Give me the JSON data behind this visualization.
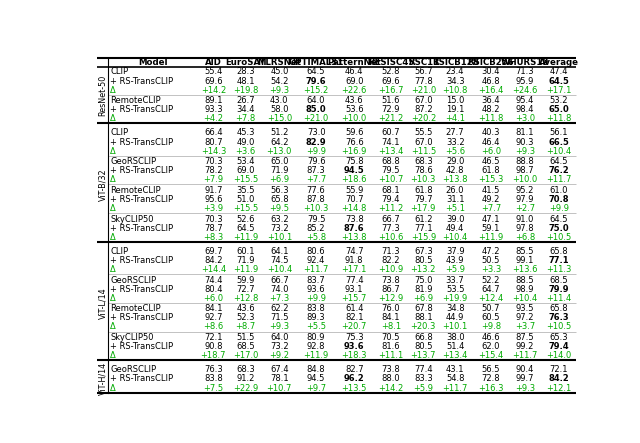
{
  "columns": [
    "Model",
    "AID",
    "EuroSAT",
    "MLRSNet",
    "OPTIMAL31",
    "PatternNet",
    "RESISC45",
    "RSC11",
    "RSICB128",
    "RSICB256",
    "WHURS19",
    "Average"
  ],
  "sections": [
    {
      "backbone": "ResNet-50",
      "groups": [
        {
          "rows": [
            [
              "CLIP",
              "55.4",
              "28.3",
              "45.0",
              "64.5",
              "46.4",
              "52.8",
              "56.7",
              "23.4",
              "30.4",
              "71.3",
              "47.4"
            ],
            [
              "+ RS-TransCLIP",
              "69.6",
              "48.1",
              "54.2",
              "79.6",
              "69.0",
              "69.6",
              "77.8",
              "34.3",
              "46.8",
              "95.9",
              "64.5"
            ],
            [
              "Δ",
              "+14.2",
              "+19.8",
              "+9.3",
              "+15.2",
              "+22.6",
              "+16.7",
              "+21.0",
              "+10.8",
              "+16.4",
              "+24.6",
              "+17.1"
            ]
          ],
          "bold_row1": [],
          "bold_row2": [
            4,
            11
          ]
        },
        {
          "rows": [
            [
              "RemoteCLIP",
              "89.1",
              "26.7",
              "43.0",
              "64.0",
              "43.6",
              "51.6",
              "67.0",
              "15.0",
              "36.4",
              "95.4",
              "53.2"
            ],
            [
              "+ RS-TransCLIP",
              "93.3",
              "34.4",
              "58.0",
              "85.0",
              "53.6",
              "72.9",
              "87.2",
              "19.1",
              "48.2",
              "98.4",
              "65.0"
            ],
            [
              "Δ",
              "+4.2",
              "+7.8",
              "+15.0",
              "+21.0",
              "+10.0",
              "+21.2",
              "+20.2",
              "+4.1",
              "+11.8",
              "+3.0",
              "+11.8"
            ]
          ],
          "bold_row1": [],
          "bold_row2": [
            4,
            11
          ]
        }
      ]
    },
    {
      "backbone": "ViT-B/32",
      "groups": [
        {
          "rows": [
            [
              "CLIP",
              "66.4",
              "45.3",
              "51.2",
              "73.0",
              "59.6",
              "60.7",
              "55.5",
              "27.7",
              "40.3",
              "81.1",
              "56.1"
            ],
            [
              "+ RS-TransCLIP",
              "80.7",
              "49.0",
              "64.2",
              "82.9",
              "76.6",
              "74.1",
              "67.0",
              "33.2",
              "46.4",
              "90.3",
              "66.5"
            ],
            [
              "Δ",
              "+14.3",
              "+3.6",
              "+13.0",
              "+9.9",
              "+16.9",
              "+13.4",
              "+11.5",
              "+5.6",
              "+6.0",
              "+9.3",
              "+10.4"
            ]
          ],
          "bold_row1": [],
          "bold_row2": [
            4,
            11
          ]
        },
        {
          "rows": [
            [
              "GeoRSCLIP",
              "70.3",
              "53.4",
              "65.0",
              "79.6",
              "75.8",
              "68.8",
              "68.3",
              "29.0",
              "46.5",
              "88.8",
              "64.5"
            ],
            [
              "+ RS-TransCLIP",
              "78.2",
              "69.0",
              "71.9",
              "87.3",
              "94.5",
              "79.5",
              "78.6",
              "42.8",
              "61.8",
              "98.7",
              "76.2"
            ],
            [
              "Δ",
              "+7.9",
              "+15.5",
              "+6.9",
              "+7.7",
              "+18.6",
              "+10.7",
              "+10.3",
              "+13.8",
              "+15.3",
              "+10.0",
              "+11.7"
            ]
          ],
          "bold_row1": [],
          "bold_row2": [
            5,
            11
          ]
        },
        {
          "rows": [
            [
              "RemoteCLIP",
              "91.7",
              "35.5",
              "56.3",
              "77.6",
              "55.9",
              "68.1",
              "61.8",
              "26.0",
              "41.5",
              "95.2",
              "61.0"
            ],
            [
              "+ RS-TransCLIP",
              "95.6",
              "51.0",
              "65.8",
              "87.8",
              "70.7",
              "79.4",
              "79.7",
              "31.1",
              "49.2",
              "97.9",
              "70.8"
            ],
            [
              "Δ",
              "+3.9",
              "+15.5",
              "+9.5",
              "+10.3",
              "+14.8",
              "+11.2",
              "+17.9",
              "+5.1",
              "+7.7",
              "+2.7",
              "+9.9"
            ]
          ],
          "bold_row1": [],
          "bold_row2": [
            11
          ]
        },
        {
          "rows": [
            [
              "SkyCLIP50",
              "70.3",
              "52.6",
              "63.2",
              "79.5",
              "73.8",
              "66.7",
              "61.2",
              "39.0",
              "47.1",
              "91.0",
              "64.5"
            ],
            [
              "+ RS-TransCLIP",
              "78.7",
              "64.5",
              "73.2",
              "85.2",
              "87.6",
              "77.3",
              "77.1",
              "49.4",
              "59.1",
              "97.8",
              "75.0"
            ],
            [
              "Δ",
              "+8.3",
              "+11.9",
              "+10.1",
              "+5.8",
              "+13.8",
              "+10.6",
              "+15.9",
              "+10.4",
              "+11.9",
              "+6.8",
              "+10.5"
            ]
          ],
          "bold_row1": [],
          "bold_row2": [
            5,
            11
          ]
        }
      ]
    },
    {
      "backbone": "ViT-L/14",
      "groups": [
        {
          "rows": [
            [
              "CLIP",
              "69.7",
              "60.1",
              "64.1",
              "80.6",
              "74.7",
              "71.3",
              "67.3",
              "37.9",
              "47.2",
              "85.5",
              "65.8"
            ],
            [
              "+ RS-TransCLIP",
              "84.2",
              "71.9",
              "74.5",
              "92.4",
              "91.8",
              "82.2",
              "80.5",
              "43.9",
              "50.5",
              "99.1",
              "77.1"
            ],
            [
              "Δ",
              "+14.4",
              "+11.9",
              "+10.4",
              "+11.7",
              "+17.1",
              "+10.9",
              "+13.2",
              "+5.9",
              "+3.3",
              "+13.6",
              "+11.3"
            ]
          ],
          "bold_row1": [],
          "bold_row2": [
            11
          ]
        },
        {
          "rows": [
            [
              "GeoRSCLIP",
              "74.4",
              "59.9",
              "66.7",
              "83.7",
              "77.4",
              "73.8",
              "75.0",
              "33.7",
              "52.2",
              "88.5",
              "68.5"
            ],
            [
              "+ RS-TransCLIP",
              "80.4",
              "72.7",
              "74.0",
              "93.6",
              "93.1",
              "86.7",
              "81.9",
              "53.5",
              "64.7",
              "98.9",
              "79.9"
            ],
            [
              "Δ",
              "+6.0",
              "+12.8",
              "+7.3",
              "+9.9",
              "+15.7",
              "+12.9",
              "+6.9",
              "+19.9",
              "+12.4",
              "+10.4",
              "+11.4"
            ]
          ],
          "bold_row1": [],
          "bold_row2": [
            11
          ]
        },
        {
          "rows": [
            [
              "RemoteCLIP",
              "84.1",
              "43.6",
              "62.2",
              "83.8",
              "61.4",
              "76.0",
              "67.8",
              "34.8",
              "50.7",
              "93.5",
              "65.8"
            ],
            [
              "+ RS-TransCLIP",
              "92.7",
              "52.3",
              "71.5",
              "89.3",
              "82.1",
              "84.1",
              "88.1",
              "44.9",
              "60.5",
              "97.2",
              "76.3"
            ],
            [
              "Δ",
              "+8.6",
              "+8.7",
              "+9.3",
              "+5.5",
              "+20.7",
              "+8.1",
              "+20.3",
              "+10.1",
              "+9.8",
              "+3.7",
              "+10.5"
            ]
          ],
          "bold_row1": [],
          "bold_row2": [
            11
          ]
        },
        {
          "rows": [
            [
              "SkyCLIP50",
              "72.1",
              "51.5",
              "64.0",
              "80.9",
              "75.3",
              "70.5",
              "66.8",
              "38.0",
              "46.6",
              "87.5",
              "65.3"
            ],
            [
              "+ RS-TransCLIP",
              "90.8",
              "68.5",
              "73.2",
              "92.8",
              "93.6",
              "81.6",
              "80.5",
              "51.4",
              "62.0",
              "99.2",
              "79.4"
            ],
            [
              "Δ",
              "+18.7",
              "+17.0",
              "+9.2",
              "+11.9",
              "+18.3",
              "+11.1",
              "+13.7",
              "+13.4",
              "+15.4",
              "+11.7",
              "+14.0"
            ]
          ],
          "bold_row1": [],
          "bold_row2": [
            5,
            11
          ]
        }
      ]
    },
    {
      "backbone": "ViT-H/14",
      "groups": [
        {
          "rows": [
            [
              "GeoRSCLIP",
              "76.3",
              "68.3",
              "67.4",
              "84.8",
              "82.7",
              "73.8",
              "77.4",
              "43.1",
              "56.5",
              "90.4",
              "72.1"
            ],
            [
              "+ RS-TransCLIP",
              "83.8",
              "91.2",
              "78.1",
              "94.5",
              "96.2",
              "88.0",
              "83.3",
              "54.8",
              "72.8",
              "99.7",
              "84.2"
            ],
            [
              "Δ",
              "+7.5",
              "+22.9",
              "+10.7",
              "+9.7",
              "+13.5",
              "+14.2",
              "+5.9",
              "+11.7",
              "+16.3",
              "+9.3",
              "+12.1"
            ]
          ],
          "bold_row1": [],
          "bold_row2": [
            5,
            11
          ]
        }
      ]
    }
  ],
  "delta_color": "#00aa00",
  "bold_color": "black",
  "normal_color": "black",
  "header_bg": "white",
  "bg_color": "white",
  "fontsize": 6.0,
  "header_fontsize": 6.2
}
